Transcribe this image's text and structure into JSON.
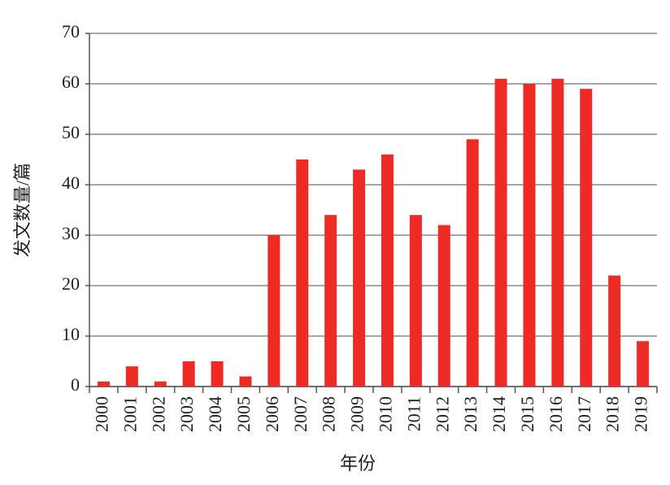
{
  "chart_data": {
    "type": "bar",
    "x_label": "年份",
    "y_label": "发文数量/篇",
    "categories": [
      "2000",
      "2001",
      "2002",
      "2003",
      "2004",
      "2005",
      "2006",
      "2007",
      "2008",
      "2009",
      "2010",
      "2011",
      "2012",
      "2013",
      "2014",
      "2015",
      "2016",
      "2017",
      "2018",
      "2019"
    ],
    "values": [
      1,
      4,
      1,
      5,
      5,
      2,
      30,
      45,
      34,
      43,
      46,
      34,
      32,
      49,
      61,
      60,
      61,
      59,
      22,
      9
    ],
    "color": "#ee2a24",
    "ylim": [
      0,
      70
    ],
    "yticks": [
      0,
      10,
      20,
      30,
      40,
      50,
      60,
      70
    ],
    "grid": true
  }
}
